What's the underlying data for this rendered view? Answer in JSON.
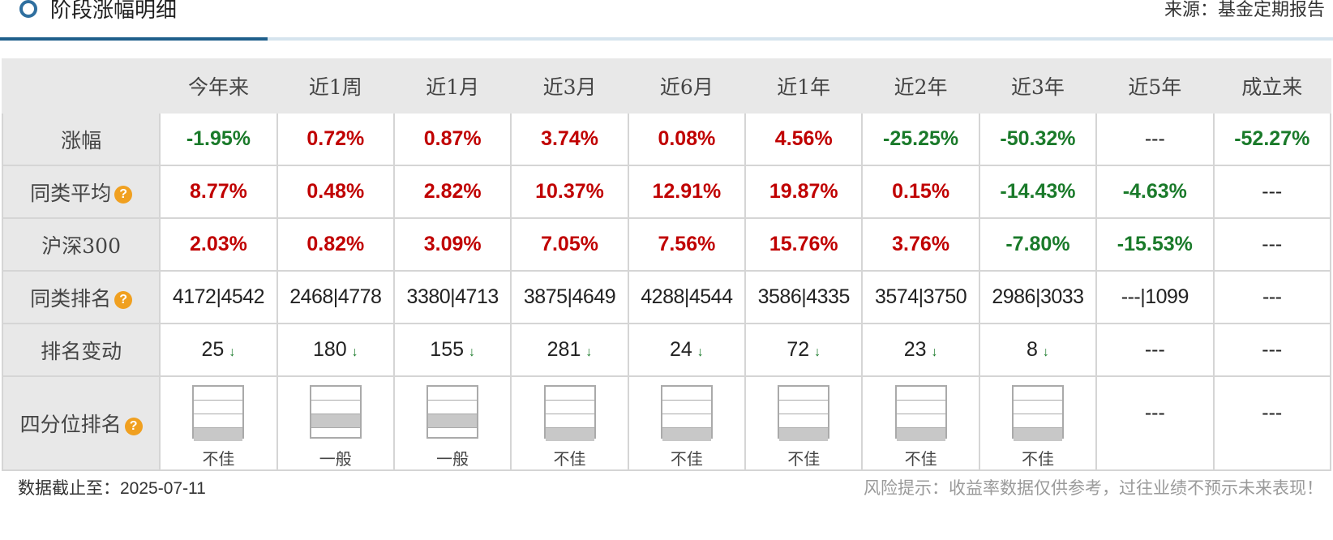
{
  "header": {
    "title": "阶段涨幅明细",
    "source": "来源：基金定期报告"
  },
  "columns": [
    "今年来",
    "近1周",
    "近1月",
    "近3月",
    "近6月",
    "近1年",
    "近2年",
    "近3年",
    "近5年",
    "成立来"
  ],
  "rows": {
    "change": {
      "label": "涨幅",
      "values": [
        "-1.95%",
        "0.72%",
        "0.87%",
        "3.74%",
        "0.08%",
        "4.56%",
        "-25.25%",
        "-50.32%",
        "---",
        "-52.27%"
      ],
      "colors": [
        "green",
        "red",
        "red",
        "red",
        "red",
        "red",
        "green",
        "green",
        "black",
        "green"
      ]
    },
    "peer_avg": {
      "label": "同类平均",
      "values": [
        "8.77%",
        "0.48%",
        "2.82%",
        "10.37%",
        "12.91%",
        "19.87%",
        "0.15%",
        "-14.43%",
        "-4.63%",
        "---"
      ],
      "colors": [
        "red",
        "red",
        "red",
        "red",
        "red",
        "red",
        "red",
        "green",
        "green",
        "black"
      ]
    },
    "csi300": {
      "label": "沪深300",
      "values": [
        "2.03%",
        "0.82%",
        "3.09%",
        "7.05%",
        "7.56%",
        "15.76%",
        "3.76%",
        "-7.80%",
        "-15.53%",
        "---"
      ],
      "colors": [
        "red",
        "red",
        "red",
        "red",
        "red",
        "red",
        "red",
        "green",
        "green",
        "black"
      ]
    },
    "peer_rank": {
      "label": "同类排名",
      "values": [
        "4172|4542",
        "2468|4778",
        "3380|4713",
        "3875|4649",
        "4288|4544",
        "3586|4335",
        "3574|3750",
        "2986|3033",
        "---|1099",
        "---"
      ]
    },
    "rank_change": {
      "label": "排名变动",
      "values": [
        "25",
        "180",
        "155",
        "281",
        "24",
        "72",
        "23",
        "8",
        "---",
        "---"
      ],
      "arrows": [
        "↓",
        "↓",
        "↓",
        "↓",
        "↓",
        "↓",
        "↓",
        "↓",
        "",
        ""
      ]
    },
    "quartile": {
      "label": "四分位排名",
      "values": [
        "不佳",
        "一般",
        "一般",
        "不佳",
        "不佳",
        "不佳",
        "不佳",
        "不佳",
        "---",
        "---"
      ],
      "levels": [
        4,
        3,
        3,
        4,
        4,
        4,
        4,
        4,
        null,
        null
      ]
    }
  },
  "footer": {
    "as_of": "数据截止至：2025-07-11",
    "risk_note": "风险提示：收益率数据仅供参考，过往业绩不预示未来表现！"
  },
  "colors": {
    "red": "#c00000",
    "green": "#1a7a2a",
    "accent": "#1f5f8b",
    "help": "#f0a020"
  },
  "icons": {
    "help": "?"
  }
}
